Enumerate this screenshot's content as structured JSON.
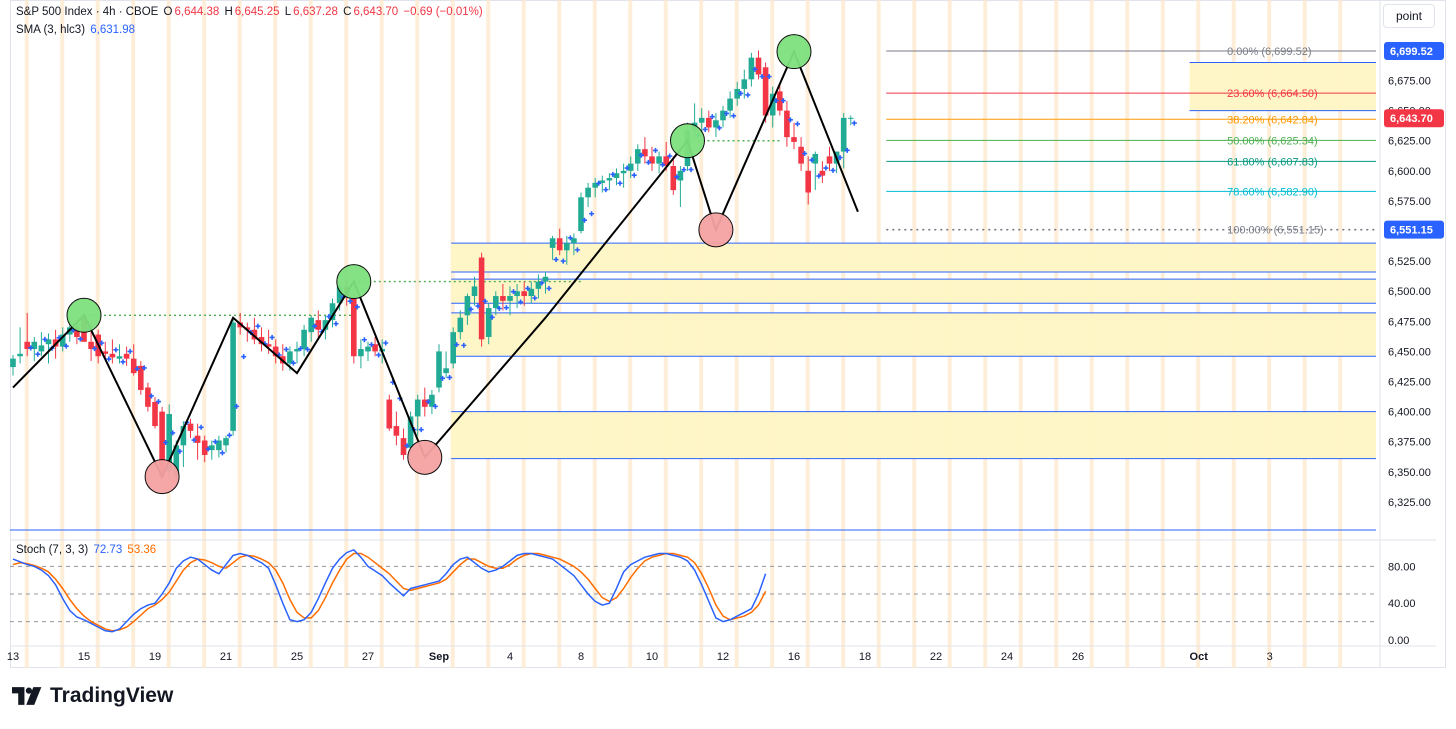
{
  "header": {
    "symbol": "S&P 500 Index · 4h · CBOE",
    "open_label": "O",
    "open": "6,644.38",
    "high_label": "H",
    "high": "6,645.25",
    "low_label": "L",
    "low": "6,637.28",
    "close_label": "C",
    "close": "6,643.70",
    "change": "−0.69 (−0.01%)",
    "sma_label": "SMA (3, hlc3)",
    "sma_value": "6,631.98",
    "stoch_label": "Stoch (7, 3, 3)",
    "stoch_k": "72.73",
    "stoch_d": "53.36",
    "scale_button": "point"
  },
  "brand": {
    "name": "TradingView"
  },
  "colors": {
    "up": "#22ab94",
    "down": "#f23645",
    "sma": "#2962ff",
    "stoch_k": "#2962ff",
    "stoch_d": "#ff6d00",
    "zone": "#fff5c2",
    "zone_line": "#2962ff",
    "session": "#fde8cc",
    "pivot_high": "#7ee07e",
    "pivot_low": "#f5a3a3",
    "zigzag": "#000000"
  },
  "chart_data": {
    "type": "candlestick",
    "price_axis": {
      "ticks": [
        "6,700.00",
        "6,675.00",
        "6,650.00",
        "6,625.00",
        "6,600.00",
        "6,575.00",
        "6,550.00",
        "6,525.00",
        "6,500.00",
        "6,475.00",
        "6,450.00",
        "6,425.00",
        "6,400.00",
        "6,375.00",
        "6,350.00",
        "6,325.00"
      ],
      "range": [
        6300,
        6712
      ]
    },
    "stoch_axis": {
      "ticks": [
        "80.00",
        "40.00",
        "0.00"
      ],
      "range": [
        0,
        100
      ]
    },
    "time_axis": {
      "labels": [
        {
          "text": "13",
          "bar": 0
        },
        {
          "text": "15",
          "bar": 10
        },
        {
          "text": "19",
          "bar": 20
        },
        {
          "text": "21",
          "bar": 30
        },
        {
          "text": "25",
          "bar": 40
        },
        {
          "text": "27",
          "bar": 50
        },
        {
          "text": "Sep",
          "bar": 60
        },
        {
          "text": "4",
          "bar": 70
        },
        {
          "text": "8",
          "bar": 80
        },
        {
          "text": "10",
          "bar": 90
        },
        {
          "text": "12",
          "bar": 100
        },
        {
          "text": "16",
          "bar": 110
        },
        {
          "text": "18",
          "bar": 120
        },
        {
          "text": "22",
          "bar": 130
        },
        {
          "text": "24",
          "bar": 140
        },
        {
          "text": "26",
          "bar": 150
        },
        {
          "text": "Oct",
          "bar": 167
        },
        {
          "text": "3",
          "bar": 177
        }
      ],
      "bars_total": 189
    },
    "candles": [
      [
        6437,
        6447,
        6430,
        6444
      ],
      [
        6446,
        6470,
        6440,
        6448
      ],
      [
        6458,
        6482,
        6446,
        6452
      ],
      [
        6452,
        6462,
        6442,
        6458
      ],
      [
        6450,
        6466,
        6446,
        6455
      ],
      [
        6456,
        6465,
        6440,
        6460
      ],
      [
        6460,
        6468,
        6444,
        6454
      ],
      [
        6454,
        6470,
        6450,
        6464
      ],
      [
        6464,
        6478,
        6458,
        6470
      ],
      [
        6470,
        6476,
        6456,
        6462
      ],
      [
        6480,
        6482,
        6458,
        6458
      ],
      [
        6458,
        6474,
        6442,
        6452
      ],
      [
        6464,
        6468,
        6440,
        6446
      ],
      [
        6450,
        6458,
        6444,
        6448
      ],
      [
        6448,
        6460,
        6440,
        6445
      ],
      [
        6444,
        6456,
        6440,
        6446
      ],
      [
        6448,
        6454,
        6438,
        6444
      ],
      [
        6444,
        6456,
        6430,
        6432
      ],
      [
        6438,
        6442,
        6414,
        6418
      ],
      [
        6420,
        6424,
        6400,
        6404
      ],
      [
        6408,
        6412,
        6386,
        6388
      ],
      [
        6400,
        6404,
        6342,
        6346
      ],
      [
        6350,
        6406,
        6344,
        6398
      ],
      [
        6346,
        6376,
        6340,
        6372
      ],
      [
        6372,
        6392,
        6354,
        6388
      ],
      [
        6390,
        6394,
        6378,
        6384
      ],
      [
        6380,
        6390,
        6360,
        6374
      ],
      [
        6376,
        6380,
        6358,
        6364
      ],
      [
        6368,
        6376,
        6360,
        6372
      ],
      [
        6368,
        6380,
        6362,
        6376
      ],
      [
        6372,
        6380,
        6366,
        6378
      ],
      [
        6384,
        6478,
        6380,
        6474
      ],
      [
        6474,
        6482,
        6464,
        6470
      ],
      [
        6470,
        6474,
        6458,
        6468
      ],
      [
        6468,
        6478,
        6456,
        6460
      ],
      [
        6462,
        6470,
        6450,
        6456
      ],
      [
        6456,
        6468,
        6448,
        6454
      ],
      [
        6454,
        6460,
        6440,
        6446
      ],
      [
        6446,
        6456,
        6434,
        6440
      ],
      [
        6440,
        6454,
        6434,
        6450
      ],
      [
        6450,
        6458,
        6440,
        6452
      ],
      [
        6452,
        6472,
        6446,
        6468
      ],
      [
        6466,
        6480,
        6458,
        6478
      ],
      [
        6476,
        6484,
        6460,
        6468
      ],
      [
        6468,
        6480,
        6460,
        6476
      ],
      [
        6476,
        6494,
        6470,
        6490
      ],
      [
        6490,
        6508,
        6484,
        6504
      ],
      [
        6504,
        6510,
        6488,
        6496
      ],
      [
        6494,
        6498,
        6440,
        6446
      ],
      [
        6446,
        6460,
        6436,
        6452
      ],
      [
        6450,
        6458,
        6442,
        6454
      ],
      [
        6456,
        6462,
        6446,
        6450
      ],
      [
        6450,
        6460,
        6440,
        6452
      ],
      [
        6410,
        6414,
        6384,
        6386
      ],
      [
        6388,
        6400,
        6372,
        6380
      ],
      [
        6378,
        6386,
        6360,
        6364
      ],
      [
        6370,
        6400,
        6366,
        6396
      ],
      [
        6396,
        6414,
        6380,
        6410
      ],
      [
        6410,
        6420,
        6396,
        6404
      ],
      [
        6404,
        6418,
        6398,
        6414
      ],
      [
        6420,
        6456,
        6416,
        6450
      ],
      [
        6432,
        6450,
        6428,
        6436
      ],
      [
        6440,
        6470,
        6436,
        6466
      ],
      [
        6466,
        6484,
        6460,
        6478
      ],
      [
        6480,
        6498,
        6472,
        6496
      ],
      [
        6496,
        6512,
        6488,
        6504
      ],
      [
        6528,
        6532,
        6454,
        6460
      ],
      [
        6462,
        6490,
        6456,
        6486
      ],
      [
        6486,
        6500,
        6480,
        6496
      ],
      [
        6496,
        6506,
        6484,
        6492
      ],
      [
        6492,
        6504,
        6480,
        6496
      ],
      [
        6496,
        6506,
        6486,
        6500
      ],
      [
        6500,
        6508,
        6488,
        6496
      ],
      [
        6496,
        6508,
        6490,
        6502
      ],
      [
        6502,
        6514,
        6494,
        6508
      ],
      [
        6508,
        6516,
        6498,
        6512
      ],
      [
        6536,
        6546,
        6526,
        6544
      ],
      [
        6544,
        6552,
        6530,
        6534
      ],
      [
        6534,
        6546,
        6522,
        6540
      ],
      [
        6540,
        6548,
        6530,
        6544
      ],
      [
        6550,
        6582,
        6548,
        6578
      ],
      [
        6578,
        6590,
        6570,
        6586
      ],
      [
        6586,
        6594,
        6578,
        6590
      ],
      [
        6590,
        6596,
        6582,
        6592
      ],
      [
        6592,
        6598,
        6584,
        6594
      ],
      [
        6594,
        6602,
        6588,
        6598
      ],
      [
        6598,
        6606,
        6586,
        6600
      ],
      [
        6600,
        6612,
        6594,
        6606
      ],
      [
        6606,
        6622,
        6600,
        6618
      ],
      [
        6618,
        6628,
        6606,
        6612
      ],
      [
        6612,
        6620,
        6600,
        6606
      ],
      [
        6606,
        6616,
        6598,
        6612
      ],
      [
        6612,
        6624,
        6600,
        6604
      ],
      [
        6604,
        6612,
        6580,
        6584
      ],
      [
        6592,
        6604,
        6570,
        6600
      ],
      [
        6604,
        6640,
        6600,
        6634
      ],
      [
        6634,
        6656,
        6626,
        6640
      ],
      [
        6640,
        6652,
        6630,
        6644
      ],
      [
        6644,
        6650,
        6632,
        6636
      ],
      [
        6636,
        6648,
        6628,
        6642
      ],
      [
        6642,
        6654,
        6636,
        6650
      ],
      [
        6650,
        6666,
        6644,
        6660
      ],
      [
        6660,
        6674,
        6654,
        6668
      ],
      [
        6668,
        6684,
        6660,
        6676
      ],
      [
        6676,
        6698,
        6670,
        6694
      ],
      [
        6694,
        6700,
        6676,
        6680
      ],
      [
        6686,
        6690,
        6640,
        6646
      ],
      [
        6646,
        6670,
        6636,
        6664
      ],
      [
        6666,
        6672,
        6646,
        6650
      ],
      [
        6650,
        6658,
        6620,
        6628
      ],
      [
        6628,
        6640,
        6618,
        6624
      ],
      [
        6620,
        6628,
        6600,
        6606
      ],
      [
        6600,
        6612,
        6572,
        6582
      ],
      [
        6606,
        6616,
        6584,
        6614
      ],
      [
        6600,
        6608,
        6590,
        6596
      ],
      [
        6612,
        6620,
        6600,
        6606
      ],
      [
        6606,
        6616,
        6598,
        6616
      ],
      [
        6616,
        6648,
        6602,
        6644
      ],
      [
        6644,
        6646,
        6638,
        6644
      ]
    ],
    "stoch_k": [
      88,
      85,
      82,
      80,
      76,
      70,
      60,
      45,
      32,
      25,
      22,
      18,
      14,
      10,
      9,
      12,
      20,
      28,
      34,
      38,
      40,
      50,
      62,
      78,
      86,
      90,
      88,
      82,
      76,
      72,
      82,
      92,
      94,
      92,
      88,
      84,
      78,
      60,
      40,
      22,
      20,
      22,
      30,
      45,
      62,
      78,
      88,
      95,
      98,
      90,
      80,
      75,
      70,
      62,
      55,
      48,
      56,
      58,
      60,
      62,
      64,
      72,
      82,
      88,
      90,
      84,
      78,
      74,
      76,
      80,
      86,
      92,
      94,
      94,
      92,
      90,
      88,
      82,
      76,
      70,
      60,
      50,
      42,
      38,
      40,
      56,
      74,
      82,
      86,
      90,
      92,
      94,
      94,
      92,
      90,
      86,
      76,
      60,
      42,
      24,
      20,
      22,
      26,
      30,
      34,
      50,
      72
    ],
    "stoch_d": [
      82,
      84,
      83,
      81,
      78,
      74,
      66,
      56,
      44,
      34,
      26,
      20,
      16,
      12,
      10,
      11,
      14,
      20,
      27,
      34,
      38,
      44,
      52,
      64,
      76,
      84,
      88,
      87,
      84,
      80,
      78,
      84,
      90,
      92,
      91,
      88,
      84,
      76,
      62,
      44,
      30,
      24,
      24,
      32,
      46,
      62,
      76,
      88,
      94,
      94,
      90,
      84,
      78,
      72,
      64,
      56,
      54,
      56,
      58,
      60,
      62,
      66,
      74,
      82,
      88,
      88,
      84,
      80,
      78,
      78,
      82,
      88,
      92,
      94,
      94,
      92,
      90,
      88,
      84,
      80,
      74,
      66,
      56,
      46,
      42,
      46,
      56,
      68,
      78,
      86,
      90,
      92,
      94,
      94,
      92,
      90,
      84,
      72,
      56,
      38,
      26,
      22,
      24,
      26,
      30,
      38,
      53
    ]
  },
  "overlays": {
    "fib_levels": [
      {
        "label": "0.00% (6,699.52)",
        "price": 6699.52,
        "color": "#787b86"
      },
      {
        "label": "23.60% (6,664.50)",
        "price": 6664.5,
        "color": "#f23645"
      },
      {
        "label": "38.20% (6,642.84)",
        "price": 6642.84,
        "color": "#ff9800"
      },
      {
        "label": "50.00% (6,625.34)",
        "price": 6625.34,
        "color": "#4caf50"
      },
      {
        "label": "61.80% (6,607.83)",
        "price": 6607.83,
        "color": "#089981"
      },
      {
        "label": "78.60% (6,582.90)",
        "price": 6582.9,
        "color": "#00bcd4"
      },
      {
        "label": "100.00% (6,551.15)",
        "price": 6551.15,
        "color": "#787b86"
      }
    ],
    "price_tags": [
      {
        "text": "6,699.52",
        "price": 6699.52,
        "color": "#2962ff"
      },
      {
        "text": "6,643.70",
        "price": 6643.7,
        "color": "#f23645"
      },
      {
        "text": "6,551.15",
        "price": 6551.15,
        "color": "#2962ff"
      }
    ],
    "zones": [
      {
        "from_bar": 166,
        "top": 6690,
        "bottom": 6650
      },
      {
        "from_bar": 62,
        "top": 6540,
        "bottom": 6516
      },
      {
        "from_bar": 62,
        "top": 6510,
        "bottom": 6490
      },
      {
        "from_bar": 62,
        "top": 6482,
        "bottom": 6446
      },
      {
        "from_bar": 62,
        "top": 6400,
        "bottom": 6361
      }
    ],
    "pivots": [
      {
        "bar": 10,
        "price": 6480,
        "type": "high"
      },
      {
        "bar": 21,
        "price": 6346,
        "type": "low"
      },
      {
        "bar": 48,
        "price": 6508,
        "type": "high"
      },
      {
        "bar": 58,
        "price": 6362,
        "type": "low"
      },
      {
        "bar": 95,
        "price": 6625,
        "type": "high"
      },
      {
        "bar": 99,
        "price": 6551,
        "type": "low"
      },
      {
        "bar": 110,
        "price": 6699,
        "type": "high"
      }
    ],
    "zigzag": [
      [
        0,
        6420
      ],
      [
        10,
        6480
      ],
      [
        21,
        6346
      ],
      [
        31,
        6478
      ],
      [
        40,
        6432
      ],
      [
        48,
        6508
      ],
      [
        58,
        6362
      ],
      [
        75,
        6478
      ],
      [
        95,
        6625
      ],
      [
        99,
        6551
      ],
      [
        110,
        6699
      ],
      [
        119,
        6566
      ]
    ]
  }
}
